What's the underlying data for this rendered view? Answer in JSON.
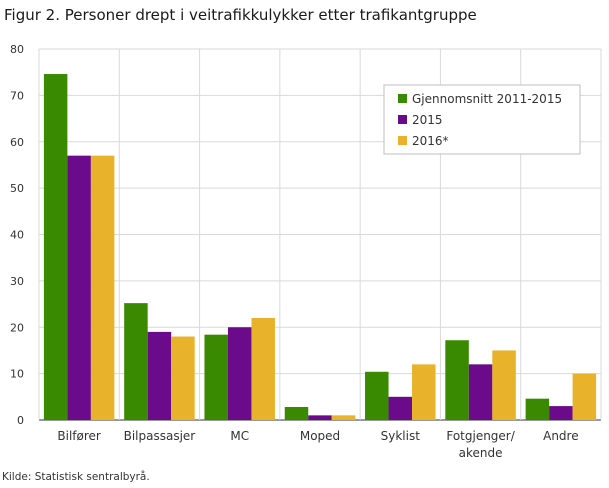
{
  "title": "Figur 2. Personer drept i veitrafikkulykker etter trafikantgruppe",
  "source": "Kilde: Statistisk sentralbyrå.",
  "chart_data": {
    "type": "bar",
    "title": "Figur 2. Personer drept i veitrafikkulykker etter trafikantgruppe",
    "xlabel": "",
    "ylabel": "",
    "ylim": [
      0,
      80
    ],
    "yticks": [
      0,
      10,
      20,
      30,
      40,
      50,
      60,
      70,
      80
    ],
    "grid": true,
    "legend_position": "top-right",
    "categories": [
      [
        "Bilfører"
      ],
      [
        "Bilpassasjer"
      ],
      [
        "MC"
      ],
      [
        "Moped"
      ],
      [
        "Syklist"
      ],
      [
        "Fotgjenger/",
        "akende"
      ],
      [
        "Andre"
      ]
    ],
    "series": [
      {
        "name": "Gjennomsnitt 2011-2015",
        "color": "#3a8a00",
        "values": [
          74.6,
          25.2,
          18.4,
          2.8,
          10.4,
          17.2,
          4.6
        ]
      },
      {
        "name": "2015",
        "color": "#6b0a8a",
        "values": [
          57,
          19,
          20,
          1,
          5,
          12,
          3
        ]
      },
      {
        "name": "2016*",
        "color": "#e8b32a",
        "values": [
          57,
          18,
          22,
          1,
          12,
          15,
          10
        ]
      }
    ]
  }
}
